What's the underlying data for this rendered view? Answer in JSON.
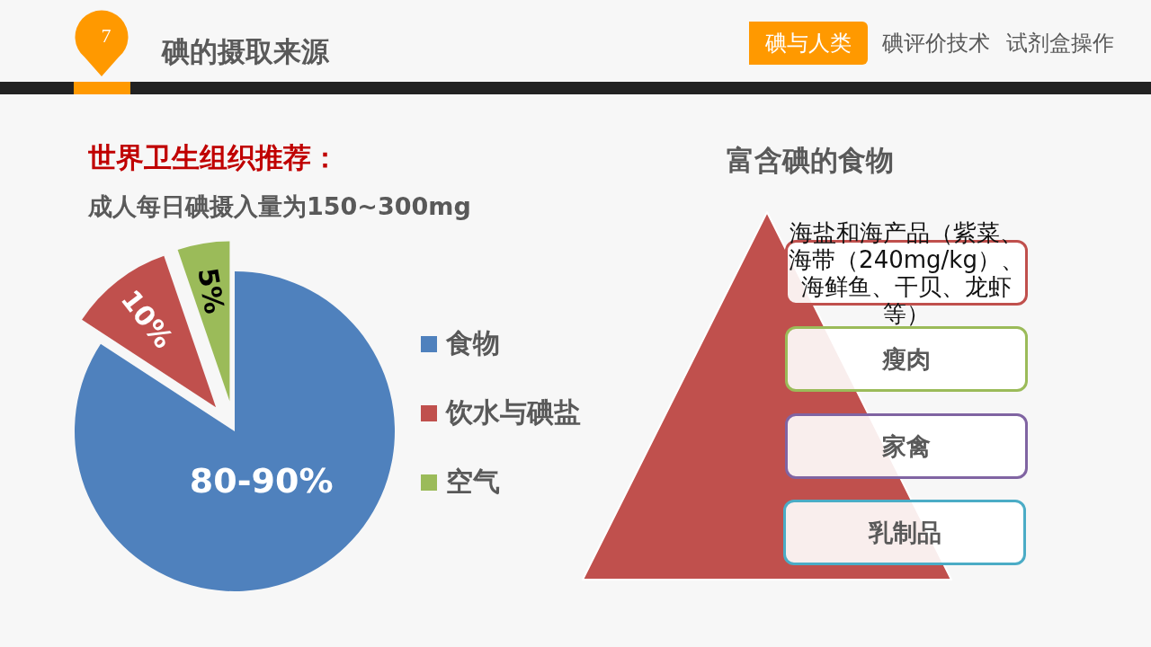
{
  "chart_data": [
    {
      "type": "other",
      "title": "碘的摄取来源",
      "annotations": [
        "7",
        "碘与人类",
        "碘评价技术",
        "试剂盒操作"
      ]
    },
    {
      "type": "pie",
      "title": "世界卫生组织推荐：",
      "subtitle": "成人每日碘摄入量为150~300mg",
      "categories": [
        "食物",
        "饮水与碘盐",
        "空气"
      ],
      "values": [
        80,
        10,
        5
      ],
      "value_labels": [
        "80-90%",
        "10%",
        "5%"
      ],
      "colors": [
        "#4f81bd",
        "#c0504d",
        "#9bbb59"
      ],
      "legend": "right"
    },
    {
      "type": "other",
      "title": "富含碘的食物",
      "annotations": [
        "海盐和海产品（紫菜、海带（240mg/kg）、海鲜鱼、干贝、龙虾等）",
        "瘦肉",
        "家禽",
        "乳制品"
      ]
    }
  ]
}
